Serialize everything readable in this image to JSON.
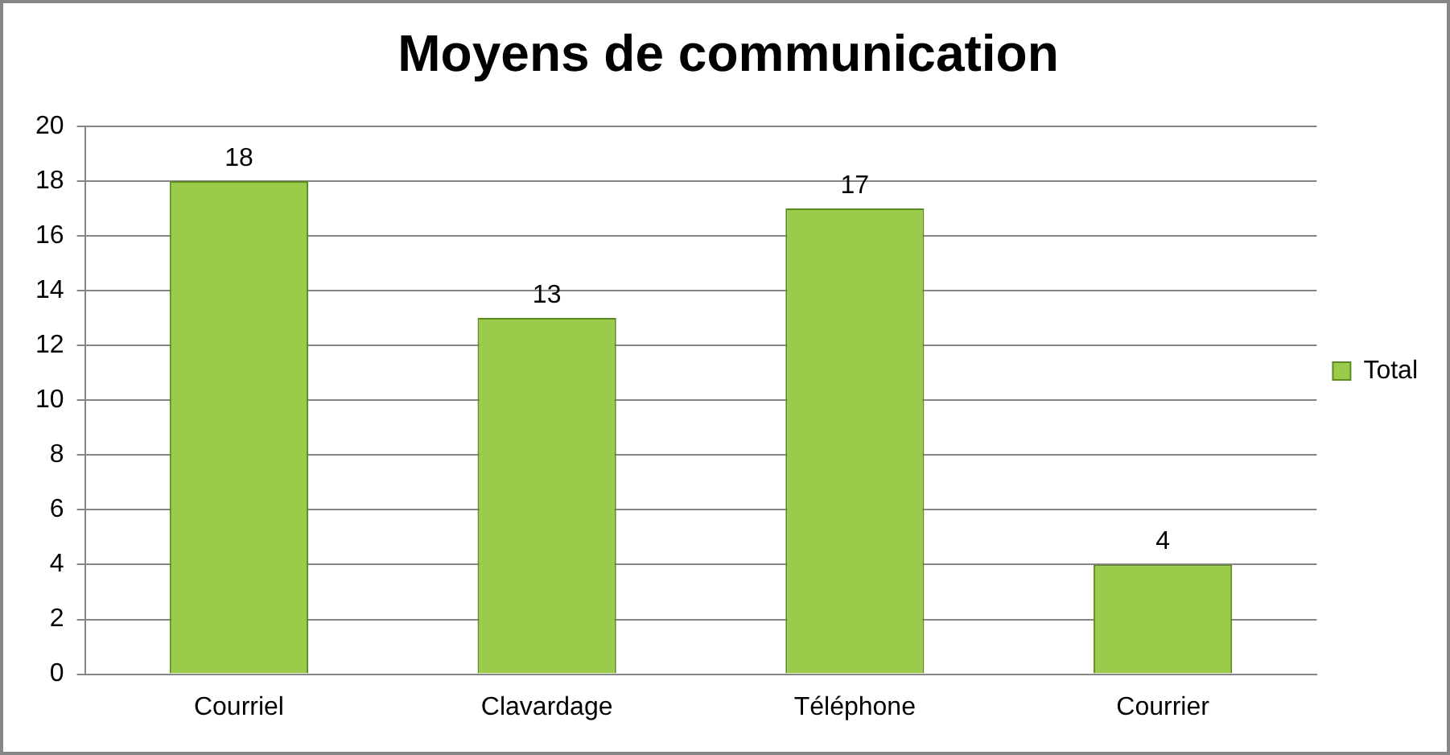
{
  "chart_data": {
    "type": "bar",
    "title": "Moyens de communication",
    "categories": [
      "Courriel",
      "Clavardage",
      "Téléphone",
      "Courrier"
    ],
    "series": [
      {
        "name": "Total",
        "color": "#9bcb4a",
        "values": [
          18,
          13,
          17,
          4
        ]
      }
    ],
    "ylim": [
      0,
      20
    ],
    "yticks": [
      0,
      2,
      4,
      6,
      8,
      10,
      12,
      14,
      16,
      18,
      20
    ],
    "grid": "y",
    "legend": "right",
    "data_labels": true
  }
}
